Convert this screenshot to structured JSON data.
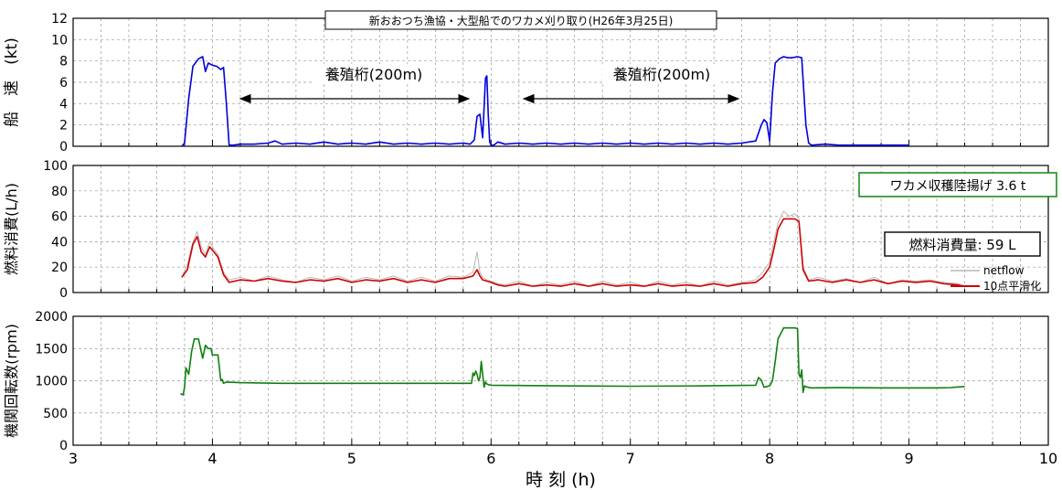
{
  "chart_data": [
    {
      "type": "line",
      "title": "新おおつち漁協・大型船でのワカメ刈り取り(H26年3月25日)",
      "ylabel": "船　速　(kt)",
      "xlim": [
        3,
        10
      ],
      "ylim": [
        0,
        12
      ],
      "yticks": [
        0,
        2,
        4,
        6,
        8,
        10,
        12
      ],
      "grid": true,
      "series": [
        {
          "color": "#0000e0",
          "x": [
            3.78,
            3.8,
            3.83,
            3.86,
            3.9,
            3.93,
            3.95,
            3.97,
            4.0,
            4.03,
            4.06,
            4.08,
            4.1,
            4.12,
            4.15,
            4.2,
            4.3,
            4.4,
            4.45,
            4.5,
            4.6,
            4.7,
            4.8,
            4.9,
            5.0,
            5.1,
            5.2,
            5.3,
            5.4,
            5.5,
            5.6,
            5.7,
            5.8,
            5.85,
            5.88,
            5.9,
            5.92,
            5.94,
            5.96,
            5.97,
            5.98,
            5.99,
            6.0,
            6.02,
            6.05,
            6.1,
            6.2,
            6.3,
            6.4,
            6.5,
            6.6,
            6.7,
            6.8,
            6.9,
            7.0,
            7.1,
            7.2,
            7.3,
            7.4,
            7.5,
            7.6,
            7.7,
            7.8,
            7.9,
            7.94,
            7.96,
            7.98,
            8.0,
            8.02,
            8.04,
            8.07,
            8.1,
            8.13,
            8.16,
            8.2,
            8.23,
            8.26,
            8.28,
            8.3,
            8.4,
            8.5,
            8.6,
            8.7,
            8.8,
            8.9,
            9.0
          ],
          "y": [
            0,
            0.3,
            4.5,
            7.5,
            8.2,
            8.4,
            7.0,
            7.8,
            7.6,
            7.5,
            7.2,
            7.4,
            4.0,
            0.1,
            0.1,
            0.2,
            0.2,
            0.3,
            0.5,
            0.2,
            0.3,
            0.2,
            0.4,
            0.2,
            0.3,
            0.2,
            0.4,
            0.2,
            0.3,
            0.2,
            0.3,
            0.2,
            0.3,
            0.2,
            0.6,
            2.8,
            3.0,
            0.8,
            6.4,
            6.6,
            3.0,
            0.4,
            0.1,
            0.1,
            0.4,
            0.2,
            0.3,
            0.2,
            0.3,
            0.2,
            0.3,
            0.2,
            0.3,
            0.2,
            0.3,
            0.2,
            0.3,
            0.2,
            0.3,
            0.2,
            0.3,
            0.2,
            0.3,
            0.5,
            2.0,
            2.5,
            2.2,
            0.5,
            5.0,
            7.8,
            8.2,
            8.4,
            8.3,
            8.3,
            8.4,
            8.3,
            2.0,
            0.3,
            0.1,
            0.2,
            0.1,
            0.1,
            0.1,
            0.1,
            0.1,
            0.1
          ]
        }
      ]
    },
    {
      "type": "line",
      "ylabel": "燃料消費(L/h)",
      "xlim": [
        3,
        10
      ],
      "ylim": [
        0,
        100
      ],
      "yticks": [
        0,
        20,
        40,
        60,
        80,
        100
      ],
      "grid": true,
      "annotations": {
        "harvest": "ワカメ収穫陸揚げ 3.6 t",
        "fuel": "燃料消費量: 59 L"
      },
      "series": [
        {
          "name": "netflow",
          "color": "#b8b8b8",
          "x": [
            3.78,
            3.82,
            3.86,
            3.89,
            3.92,
            3.95,
            3.98,
            4.01,
            4.04,
            4.08,
            4.12,
            4.2,
            4.3,
            4.4,
            4.5,
            4.6,
            4.7,
            4.8,
            4.9,
            5.0,
            5.1,
            5.2,
            5.3,
            5.4,
            5.5,
            5.6,
            5.7,
            5.8,
            5.87,
            5.9,
            5.92,
            5.94,
            5.97,
            6.0,
            6.05,
            6.1,
            6.2,
            6.3,
            6.4,
            6.5,
            6.6,
            6.7,
            6.8,
            6.9,
            7.0,
            7.1,
            7.2,
            7.3,
            7.4,
            7.5,
            7.6,
            7.7,
            7.8,
            7.9,
            7.95,
            8.0,
            8.03,
            8.06,
            8.1,
            8.14,
            8.18,
            8.21,
            8.24,
            8.28,
            8.35,
            8.45,
            8.55,
            8.65,
            8.75,
            8.85,
            8.95,
            9.05,
            9.15,
            9.25,
            9.35,
            9.39
          ],
          "y": [
            12,
            22,
            40,
            48,
            36,
            30,
            40,
            34,
            30,
            16,
            10,
            12,
            9,
            13,
            10,
            8,
            12,
            10,
            13,
            9,
            12,
            10,
            13,
            9,
            12,
            9,
            13,
            12,
            16,
            32,
            16,
            12,
            10,
            9,
            7,
            6,
            9,
            5,
            8,
            6,
            9,
            5,
            9,
            6,
            8,
            5,
            9,
            6,
            8,
            5,
            9,
            6,
            8,
            10,
            16,
            24,
            40,
            55,
            64,
            60,
            62,
            58,
            20,
            10,
            12,
            9,
            11,
            8,
            12,
            7,
            10,
            9,
            10,
            8,
            7,
            6
          ]
        },
        {
          "name": "10点平滑化",
          "color": "#d00000",
          "x": [
            3.78,
            3.82,
            3.86,
            3.89,
            3.92,
            3.95,
            3.98,
            4.01,
            4.04,
            4.08,
            4.12,
            4.2,
            4.3,
            4.4,
            4.5,
            4.6,
            4.7,
            4.8,
            4.9,
            5.0,
            5.1,
            5.2,
            5.3,
            5.4,
            5.5,
            5.6,
            5.7,
            5.8,
            5.87,
            5.9,
            5.92,
            5.94,
            5.97,
            6.0,
            6.05,
            6.1,
            6.2,
            6.3,
            6.4,
            6.5,
            6.6,
            6.7,
            6.8,
            6.9,
            7.0,
            7.1,
            7.2,
            7.3,
            7.4,
            7.5,
            7.6,
            7.7,
            7.8,
            7.9,
            7.95,
            8.0,
            8.03,
            8.06,
            8.1,
            8.14,
            8.18,
            8.21,
            8.24,
            8.28,
            8.35,
            8.45,
            8.55,
            8.65,
            8.75,
            8.85,
            8.95,
            9.05,
            9.15,
            9.25,
            9.35,
            9.39
          ],
          "y": [
            12,
            18,
            38,
            44,
            32,
            28,
            36,
            32,
            28,
            14,
            8,
            10,
            9,
            11,
            9,
            8,
            10,
            9,
            11,
            8,
            10,
            9,
            11,
            8,
            10,
            8,
            11,
            11,
            13,
            18,
            13,
            10,
            9,
            8,
            6,
            5,
            7,
            5,
            6,
            5,
            7,
            5,
            7,
            5,
            6,
            5,
            7,
            5,
            6,
            5,
            7,
            5,
            7,
            8,
            12,
            20,
            34,
            50,
            58,
            58,
            58,
            56,
            18,
            9,
            10,
            8,
            10,
            8,
            10,
            7,
            9,
            8,
            9,
            7,
            6,
            5
          ]
        }
      ]
    },
    {
      "type": "line",
      "ylabel": "機関回転数(rpm)",
      "xlabel": "時 刻 (h)",
      "xlim": [
        3,
        10
      ],
      "ylim": [
        0,
        2000
      ],
      "yticks": [
        0,
        500,
        1000,
        1500,
        2000
      ],
      "xticks": [
        3,
        4,
        5,
        6,
        7,
        8,
        9,
        10
      ],
      "grid": true,
      "series": [
        {
          "color": "#108010",
          "x": [
            3.77,
            3.79,
            3.8,
            3.81,
            3.83,
            3.85,
            3.87,
            3.9,
            3.92,
            3.93,
            3.95,
            3.97,
            3.99,
            4.0,
            4.02,
            4.04,
            4.06,
            4.07,
            4.08,
            4.1,
            4.2,
            4.5,
            5.0,
            5.5,
            5.86,
            5.87,
            5.88,
            5.89,
            5.9,
            5.91,
            5.92,
            5.93,
            5.94,
            5.95,
            5.96,
            5.97,
            5.98,
            6.0,
            6.5,
            7.0,
            7.5,
            7.9,
            7.92,
            7.94,
            7.96,
            7.98,
            8.0,
            8.02,
            8.04,
            8.06,
            8.1,
            8.15,
            8.18,
            8.2,
            8.21,
            8.22,
            8.23,
            8.24,
            8.25,
            8.27,
            8.3,
            8.5,
            8.8,
            9.0,
            9.2,
            9.3,
            9.33,
            9.4
          ],
          "y": [
            800,
            780,
            900,
            1200,
            1100,
            1450,
            1650,
            1650,
            1450,
            1350,
            1550,
            1500,
            1500,
            1400,
            1400,
            1400,
            1000,
            1020,
            960,
            980,
            970,
            960,
            960,
            960,
            960,
            1120,
            1080,
            1150,
            1100,
            1000,
            1050,
            1300,
            1100,
            900,
            980,
            950,
            940,
            930,
            920,
            915,
            920,
            930,
            1050,
            1010,
            900,
            910,
            920,
            1000,
            1300,
            1650,
            1820,
            1820,
            1820,
            1810,
            1100,
            1050,
            1170,
            820,
            920,
            900,
            890,
            895,
            890,
            890,
            890,
            893,
            900,
            910
          ]
        }
      ]
    }
  ],
  "annotations": {
    "section_left": "養殖桁(200m)",
    "section_right": "養殖桁(200m)"
  }
}
